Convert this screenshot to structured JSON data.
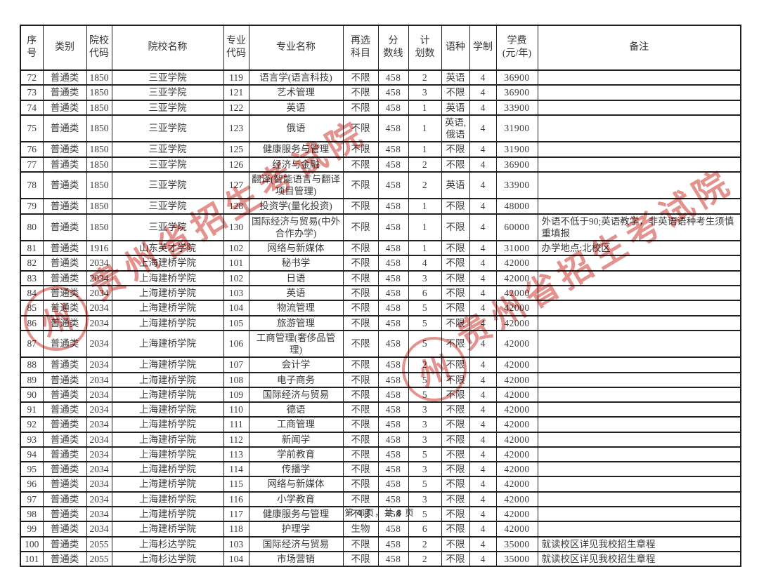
{
  "page": {
    "footer": {
      "prefix": "第",
      "page_number": "4",
      "mid": "页，共",
      "total_pages": "8",
      "suffix": "页"
    },
    "watermark": {
      "text": "贵州省招生考试院",
      "seal_char": "州",
      "color": "#ce3932"
    },
    "colors": {
      "border": "#1f1f1f",
      "text": "#3b3b3b",
      "background": "#ffffff"
    }
  },
  "table": {
    "columns": [
      {
        "key": "xh",
        "label": "序号"
      },
      {
        "key": "lb",
        "label": "类别"
      },
      {
        "key": "yxdm",
        "label": "院校\n代码"
      },
      {
        "key": "yxmc",
        "label": "院校名称"
      },
      {
        "key": "zydm",
        "label": "专业\n代码"
      },
      {
        "key": "zymc",
        "label": "专业名称"
      },
      {
        "key": "zxkm",
        "label": "再选\n科目"
      },
      {
        "key": "fsx",
        "label": "分\n数线"
      },
      {
        "key": "jhs",
        "label": "计\n划数"
      },
      {
        "key": "yz",
        "label": "语种"
      },
      {
        "key": "xz",
        "label": "学制"
      },
      {
        "key": "xf",
        "label": "学费\n(元/年)"
      },
      {
        "key": "bz",
        "label": "备注"
      }
    ],
    "rows": [
      [
        "72",
        "普通类",
        "1850",
        "三亚学院",
        "119",
        "语言学(语言科技)",
        "不限",
        "458",
        "2",
        "英语",
        "4",
        "36900",
        ""
      ],
      [
        "73",
        "普通类",
        "1850",
        "三亚学院",
        "121",
        "艺术管理",
        "不限",
        "458",
        "3",
        "不限",
        "4",
        "36900",
        ""
      ],
      [
        "74",
        "普通类",
        "1850",
        "三亚学院",
        "122",
        "英语",
        "不限",
        "458",
        "1",
        "英语",
        "4",
        "33900",
        ""
      ],
      [
        "75",
        "普通类",
        "1850",
        "三亚学院",
        "123",
        "俄语",
        "不限",
        "458",
        "1",
        "英语,俄语",
        "4",
        "31900",
        ""
      ],
      [
        "76",
        "普通类",
        "1850",
        "三亚学院",
        "125",
        "健康服务与管理",
        "不限",
        "458",
        "1",
        "不限",
        "4",
        "31900",
        ""
      ],
      [
        "77",
        "普通类",
        "1850",
        "三亚学院",
        "126",
        "经济与金融",
        "不限",
        "458",
        "2",
        "不限",
        "4",
        "36900",
        ""
      ],
      [
        "78",
        "普通类",
        "1850",
        "三亚学院",
        "127",
        "翻译(智能语言与翻译项目管理)",
        "不限",
        "458",
        "2",
        "英语",
        "4",
        "33900",
        ""
      ],
      [
        "79",
        "普通类",
        "1850",
        "三亚学院",
        "128",
        "投资学(量化投资)",
        "不限",
        "458",
        "1",
        "不限",
        "4",
        "48000",
        ""
      ],
      [
        "80",
        "普通类",
        "1850",
        "三亚学院",
        "130",
        "国际经济与贸易(中外合作办学)",
        "不限",
        "458",
        "1",
        "不限",
        "4",
        "60000",
        "外语不低于90;英语教学，非英语语种考生须慎重填报"
      ],
      [
        "81",
        "普通类",
        "1916",
        "山东英才学院",
        "102",
        "网络与新媒体",
        "不限",
        "458",
        "1",
        "不限",
        "4",
        "31000",
        "办学地点:北校区"
      ],
      [
        "82",
        "普通类",
        "2034",
        "上海建桥学院",
        "101",
        "秘书学",
        "不限",
        "458",
        "4",
        "不限",
        "4",
        "42000",
        ""
      ],
      [
        "83",
        "普通类",
        "2034",
        "上海建桥学院",
        "102",
        "日语",
        "不限",
        "458",
        "3",
        "不限",
        "4",
        "42000",
        ""
      ],
      [
        "84",
        "普通类",
        "2034",
        "上海建桥学院",
        "103",
        "英语",
        "不限",
        "458",
        "6",
        "不限",
        "4",
        "42000",
        ""
      ],
      [
        "85",
        "普通类",
        "2034",
        "上海建桥学院",
        "104",
        "物流管理",
        "不限",
        "458",
        "5",
        "不限",
        "4",
        "42000",
        ""
      ],
      [
        "86",
        "普通类",
        "2034",
        "上海建桥学院",
        "105",
        "旅游管理",
        "不限",
        "458",
        "5",
        "不限",
        "4",
        "42000",
        ""
      ],
      [
        "87",
        "普通类",
        "2034",
        "上海建桥学院",
        "106",
        "工商管理(奢侈品管理)",
        "不限",
        "458",
        "5",
        "不限",
        "4",
        "42000",
        ""
      ],
      [
        "88",
        "普通类",
        "2034",
        "上海建桥学院",
        "107",
        "会计学",
        "不限",
        "458",
        "2",
        "不限",
        "4",
        "42000",
        ""
      ],
      [
        "89",
        "普通类",
        "2034",
        "上海建桥学院",
        "108",
        "电子商务",
        "不限",
        "458",
        "5",
        "不限",
        "4",
        "42000",
        ""
      ],
      [
        "90",
        "普通类",
        "2034",
        "上海建桥学院",
        "109",
        "国际经济与贸易",
        "不限",
        "458",
        "5",
        "不限",
        "4",
        "42000",
        ""
      ],
      [
        "91",
        "普通类",
        "2034",
        "上海建桥学院",
        "110",
        "德语",
        "不限",
        "458",
        "3",
        "不限",
        "4",
        "42000",
        ""
      ],
      [
        "92",
        "普通类",
        "2034",
        "上海建桥学院",
        "111",
        "工商管理",
        "不限",
        "458",
        "3",
        "不限",
        "4",
        "42000",
        ""
      ],
      [
        "93",
        "普通类",
        "2034",
        "上海建桥学院",
        "112",
        "新闻学",
        "不限",
        "458",
        "3",
        "不限",
        "4",
        "42000",
        ""
      ],
      [
        "94",
        "普通类",
        "2034",
        "上海建桥学院",
        "113",
        "学前教育",
        "不限",
        "458",
        "5",
        "不限",
        "4",
        "42000",
        ""
      ],
      [
        "95",
        "普通类",
        "2034",
        "上海建桥学院",
        "114",
        "传播学",
        "不限",
        "458",
        "3",
        "不限",
        "4",
        "42000",
        ""
      ],
      [
        "96",
        "普通类",
        "2034",
        "上海建桥学院",
        "115",
        "网络与新媒体",
        "不限",
        "458",
        "5",
        "不限",
        "4",
        "42000",
        ""
      ],
      [
        "97",
        "普通类",
        "2034",
        "上海建桥学院",
        "116",
        "小学教育",
        "不限",
        "458",
        "3",
        "不限",
        "4",
        "42000",
        ""
      ],
      [
        "98",
        "普通类",
        "2034",
        "上海建桥学院",
        "117",
        "健康服务与管理",
        "不限",
        "458",
        "5",
        "不限",
        "4",
        "42000",
        ""
      ],
      [
        "99",
        "普通类",
        "2034",
        "上海建桥学院",
        "118",
        "护理学",
        "生物",
        "458",
        "6",
        "不限",
        "4",
        "42000",
        ""
      ],
      [
        "100",
        "普通类",
        "2055",
        "上海杉达学院",
        "103",
        "国际经济与贸易",
        "不限",
        "458",
        "2",
        "不限",
        "4",
        "35000",
        "就读校区详见我校招生章程"
      ],
      [
        "101",
        "普通类",
        "2055",
        "上海杉达学院",
        "104",
        "市场营销",
        "不限",
        "458",
        "2",
        "不限",
        "4",
        "35000",
        "就读校区详见我校招生章程"
      ]
    ]
  }
}
